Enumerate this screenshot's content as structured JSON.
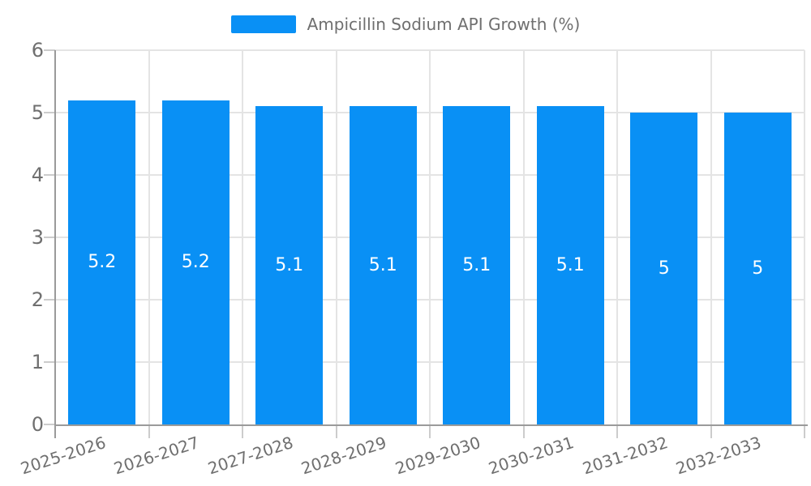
{
  "chart_data": {
    "type": "bar",
    "title": "",
    "legend": "Ampicillin Sodium API Growth (%)",
    "legend_position": "top",
    "categories": [
      "2025-2026",
      "2026-2027",
      "2027-2028",
      "2028-2029",
      "2029-2030",
      "2030-2031",
      "2031-2032",
      "2032-2033"
    ],
    "series": [
      {
        "name": "Ampicillin Sodium API Growth (%)",
        "values": [
          5.2,
          5.2,
          5.1,
          5.1,
          5.1,
          5.1,
          5,
          5
        ],
        "value_labels": [
          "5.2",
          "5.2",
          "5.1",
          "5.1",
          "5.1",
          "5.1",
          "5",
          "5"
        ]
      }
    ],
    "xlabel": "",
    "ylabel": "",
    "ylim": [
      0,
      6
    ],
    "ytick_labels": [
      "0",
      "1",
      "2",
      "3",
      "4",
      "5",
      "6"
    ],
    "grid": true,
    "colors": {
      "bar": "#0990f5",
      "bar_label": "#ffffff",
      "axis_line": "#9a9a9a",
      "grid_line": "#e4e4e4",
      "tick_line": "#cccccc",
      "text": "#6f6f6f"
    }
  }
}
